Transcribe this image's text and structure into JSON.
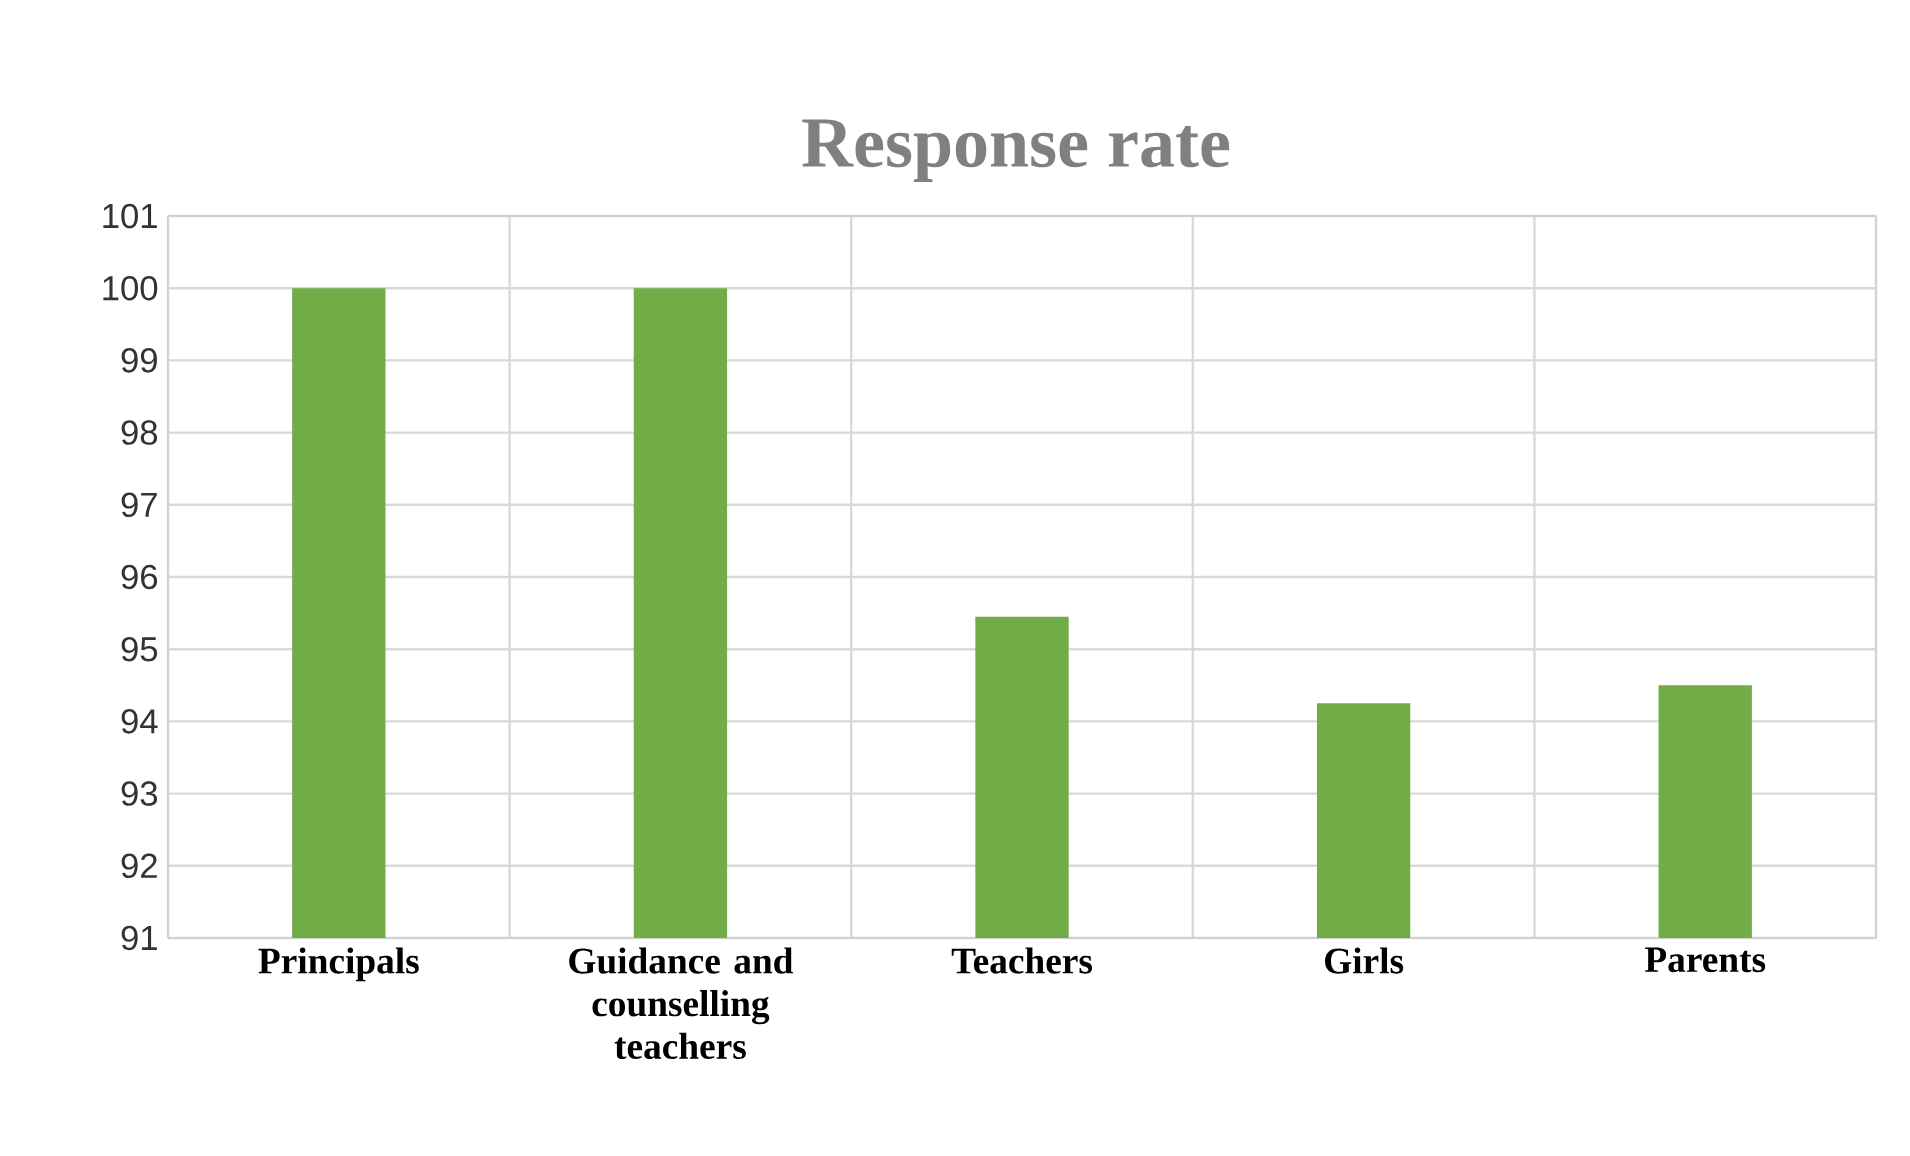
{
  "chart_data": {
    "type": "bar",
    "title": "Response rate",
    "categories": [
      "Principals",
      "Guidance and counselling teachers",
      "Teachers",
      "Girls",
      "Parents"
    ],
    "values": [
      100,
      100,
      95.45,
      94.25,
      94.5
    ],
    "color": "#70ad47",
    "ylim": [
      91,
      101
    ],
    "yticks": [
      91,
      92,
      93,
      94,
      95,
      96,
      97,
      98,
      99,
      100,
      101
    ],
    "grid": true
  }
}
